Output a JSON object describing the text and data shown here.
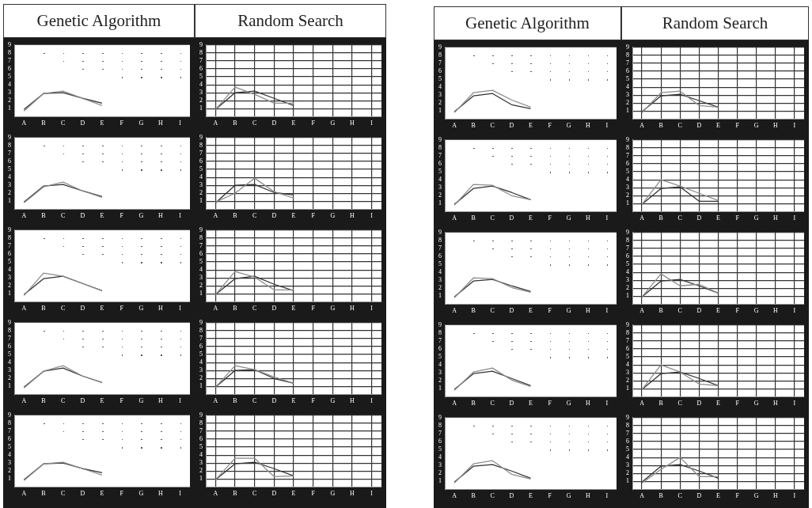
{
  "chart_data": [
    {
      "type": "line",
      "title": "Genetic Algorithm",
      "categories": [
        "A",
        "B",
        "C",
        "D",
        "E",
        "F",
        "G",
        "H",
        "I"
      ],
      "ylim": [
        0,
        9
      ],
      "yticks": [
        1,
        2,
        3,
        4,
        5,
        6,
        7,
        8,
        9
      ],
      "grid": false,
      "legend": false,
      "series": [
        {
          "color": "#8c8c8c",
          "values": [
            0.7,
            2.9,
            3.2,
            2.3,
            1.4,
            null,
            null,
            null,
            null
          ]
        },
        {
          "color": "#333333",
          "values": [
            0.9,
            2.9,
            3.0,
            2.3,
            1.7,
            null,
            null,
            null,
            null
          ]
        }
      ]
    },
    {
      "type": "line",
      "title": "Random Search",
      "categories": [
        "A",
        "B",
        "C",
        "D",
        "E",
        "F",
        "G",
        "H",
        "I"
      ],
      "ylim": [
        0,
        9
      ],
      "yticks": [
        1,
        2,
        3,
        4,
        5,
        6,
        7,
        8,
        9
      ],
      "grid": true,
      "legend": false,
      "series": [
        {
          "color": "#8c8c8c",
          "values": [
            0.9,
            3.7,
            2.8,
            1.7,
            1.7,
            null,
            null,
            null,
            null
          ]
        },
        {
          "color": "#333333",
          "values": [
            0.9,
            3.0,
            3.2,
            2.3,
            1.4,
            null,
            null,
            null,
            null
          ]
        }
      ]
    },
    {
      "type": "line",
      "categories": [
        "A",
        "B",
        "C",
        "D",
        "E",
        "F",
        "G",
        "H",
        "I"
      ],
      "ylim": [
        0,
        9
      ],
      "yticks": [
        1,
        2,
        3,
        4,
        5,
        6,
        7,
        8,
        9
      ],
      "grid": false,
      "legend": false,
      "series": [
        {
          "color": "#8c8c8c",
          "values": [
            0.8,
            2.8,
            3.4,
            2.3,
            1.5,
            null,
            null,
            null,
            null
          ]
        },
        {
          "color": "#333333",
          "values": [
            0.9,
            2.9,
            3.1,
            2.3,
            1.6,
            null,
            null,
            null,
            null
          ]
        }
      ]
    },
    {
      "type": "line",
      "categories": [
        "A",
        "B",
        "C",
        "D",
        "E",
        "F",
        "G",
        "H",
        "I"
      ],
      "ylim": [
        0,
        9
      ],
      "yticks": [
        1,
        2,
        3,
        4,
        5,
        6,
        7,
        8,
        9
      ],
      "grid": true,
      "legend": false,
      "series": [
        {
          "color": "#8c8c8c",
          "values": [
            0.9,
            2.0,
            3.9,
            2.2,
            1.4,
            null,
            null,
            null,
            null
          ]
        },
        {
          "color": "#333333",
          "values": [
            0.8,
            3.0,
            3.1,
            2.1,
            1.8,
            null,
            null,
            null,
            null
          ]
        }
      ]
    },
    {
      "type": "line",
      "categories": [
        "A",
        "B",
        "C",
        "D",
        "E",
        "F",
        "G",
        "H",
        "I"
      ],
      "ylim": [
        0,
        9
      ],
      "yticks": [
        1,
        2,
        3,
        4,
        5,
        6,
        7,
        8,
        9
      ],
      "grid": false,
      "legend": false,
      "series": [
        {
          "color": "#8c8c8c",
          "values": [
            0.8,
            3.6,
            3.2,
            2.3,
            1.4,
            null,
            null,
            null,
            null
          ]
        },
        {
          "color": "#333333",
          "values": [
            0.9,
            2.9,
            3.2,
            2.3,
            1.4,
            null,
            null,
            null,
            null
          ]
        }
      ]
    },
    {
      "type": "line",
      "categories": [
        "A",
        "B",
        "C",
        "D",
        "E",
        "F",
        "G",
        "H",
        "I"
      ],
      "ylim": [
        0,
        9
      ],
      "yticks": [
        1,
        2,
        3,
        4,
        5,
        6,
        7,
        8,
        9
      ],
      "grid": true,
      "legend": false,
      "series": [
        {
          "color": "#8c8c8c",
          "values": [
            0.9,
            3.8,
            3.1,
            1.5,
            1.5,
            null,
            null,
            null,
            null
          ]
        },
        {
          "color": "#333333",
          "values": [
            0.9,
            2.9,
            3.2,
            2.2,
            1.4,
            null,
            null,
            null,
            null
          ]
        }
      ]
    },
    {
      "type": "line",
      "categories": [
        "A",
        "B",
        "C",
        "D",
        "E",
        "F",
        "G",
        "H",
        "I"
      ],
      "ylim": [
        0,
        9
      ],
      "yticks": [
        1,
        2,
        3,
        4,
        5,
        6,
        7,
        8,
        9
      ],
      "grid": false,
      "legend": false,
      "series": [
        {
          "color": "#8c8c8c",
          "values": [
            0.8,
            2.9,
            3.6,
            2.3,
            1.5,
            null,
            null,
            null,
            null
          ]
        },
        {
          "color": "#333333",
          "values": [
            0.9,
            2.9,
            3.3,
            2.3,
            1.5,
            null,
            null,
            null,
            null
          ]
        }
      ]
    },
    {
      "type": "line",
      "categories": [
        "A",
        "B",
        "C",
        "D",
        "E",
        "F",
        "G",
        "H",
        "I"
      ],
      "ylim": [
        0,
        9
      ],
      "yticks": [
        1,
        2,
        3,
        4,
        5,
        6,
        7,
        8,
        9
      ],
      "grid": true,
      "legend": false,
      "series": [
        {
          "color": "#8c8c8c",
          "values": [
            0.9,
            3.6,
            3.1,
            2.2,
            1.4,
            null,
            null,
            null,
            null
          ]
        },
        {
          "color": "#333333",
          "values": [
            0.9,
            3.0,
            3.1,
            2.0,
            1.4,
            null,
            null,
            null,
            null
          ]
        }
      ]
    },
    {
      "type": "line",
      "categories": [
        "A",
        "B",
        "C",
        "D",
        "E",
        "F",
        "G",
        "H",
        "I"
      ],
      "ylim": [
        0,
        9
      ],
      "yticks": [
        1,
        2,
        3,
        4,
        5,
        6,
        7,
        8,
        9
      ],
      "grid": false,
      "legend": false,
      "series": [
        {
          "color": "#8c8c8c",
          "values": [
            0.8,
            2.9,
            3.1,
            2.3,
            1.5,
            null,
            null,
            null,
            null
          ]
        },
        {
          "color": "#333333",
          "values": [
            0.9,
            2.9,
            3.0,
            2.3,
            1.8,
            null,
            null,
            null,
            null
          ]
        }
      ]
    },
    {
      "type": "line",
      "categories": [
        "A",
        "B",
        "C",
        "D",
        "E",
        "F",
        "G",
        "H",
        "I"
      ],
      "ylim": [
        0,
        9
      ],
      "yticks": [
        1,
        2,
        3,
        4,
        5,
        6,
        7,
        8,
        9
      ],
      "grid": true,
      "legend": false,
      "series": [
        {
          "color": "#8c8c8c",
          "values": [
            0.9,
            3.6,
            3.6,
            1.3,
            1.4,
            null,
            null,
            null,
            null
          ]
        },
        {
          "color": "#333333",
          "values": [
            0.9,
            2.9,
            3.1,
            2.3,
            1.4,
            null,
            null,
            null,
            null
          ]
        }
      ]
    },
    {
      "type": "line",
      "title": "Genetic Algorithm",
      "categories": [
        "A",
        "B",
        "C",
        "D",
        "E",
        "F",
        "G",
        "H",
        "I"
      ],
      "ylim": [
        0,
        9
      ],
      "yticks": [
        1,
        2,
        3,
        4,
        5,
        6,
        7,
        8,
        9
      ],
      "grid": false,
      "legend": false,
      "series": [
        {
          "color": "#8c8c8c",
          "values": [
            0.8,
            3.3,
            3.6,
            2.4,
            1.5,
            null,
            null,
            null,
            null
          ]
        },
        {
          "color": "#333333",
          "values": [
            0.9,
            2.9,
            3.2,
            1.8,
            1.3,
            null,
            null,
            null,
            null
          ]
        }
      ]
    },
    {
      "type": "line",
      "title": "Random Search",
      "categories": [
        "A",
        "B",
        "C",
        "D",
        "E",
        "F",
        "G",
        "H",
        "I"
      ],
      "ylim": [
        0,
        9
      ],
      "yticks": [
        1,
        2,
        3,
        4,
        5,
        6,
        7,
        8,
        9
      ],
      "grid": true,
      "legend": false,
      "series": [
        {
          "color": "#8c8c8c",
          "values": [
            0.8,
            3.3,
            3.5,
            1.7,
            1.5,
            null,
            null,
            null,
            null
          ]
        },
        {
          "color": "#333333",
          "values": [
            0.9,
            2.9,
            3.1,
            2.3,
            1.5,
            null,
            null,
            null,
            null
          ]
        }
      ]
    },
    {
      "type": "line",
      "categories": [
        "A",
        "B",
        "C",
        "D",
        "E",
        "F",
        "G",
        "H",
        "I"
      ],
      "ylim": [
        0,
        9
      ],
      "yticks": [
        1,
        2,
        3,
        4,
        5,
        6,
        7,
        8,
        9
      ],
      "grid": false,
      "legend": false,
      "series": [
        {
          "color": "#8c8c8c",
          "values": [
            0.8,
            3.4,
            3.3,
            2.0,
            1.5,
            null,
            null,
            null,
            null
          ]
        },
        {
          "color": "#333333",
          "values": [
            0.9,
            2.9,
            3.2,
            2.4,
            1.5,
            null,
            null,
            null,
            null
          ]
        }
      ]
    },
    {
      "type": "line",
      "categories": [
        "A",
        "B",
        "C",
        "D",
        "E",
        "F",
        "G",
        "H",
        "I"
      ],
      "ylim": [
        0,
        9
      ],
      "yticks": [
        1,
        2,
        3,
        4,
        5,
        6,
        7,
        8,
        9
      ],
      "grid": true,
      "legend": false,
      "series": [
        {
          "color": "#8c8c8c",
          "values": [
            0.9,
            4.0,
            3.2,
            2.3,
            1.4,
            null,
            null,
            null,
            null
          ]
        },
        {
          "color": "#333333",
          "values": [
            0.9,
            2.9,
            3.1,
            1.3,
            1.3,
            null,
            null,
            null,
            null
          ]
        }
      ]
    },
    {
      "type": "line",
      "categories": [
        "A",
        "B",
        "C",
        "D",
        "E",
        "F",
        "G",
        "H",
        "I"
      ],
      "ylim": [
        0,
        9
      ],
      "yticks": [
        1,
        2,
        3,
        4,
        5,
        6,
        7,
        8,
        9
      ],
      "grid": false,
      "legend": false,
      "series": [
        {
          "color": "#8c8c8c",
          "values": [
            0.8,
            3.3,
            3.2,
            2.1,
            1.5,
            null,
            null,
            null,
            null
          ]
        },
        {
          "color": "#333333",
          "values": [
            0.9,
            2.9,
            3.1,
            2.3,
            1.6,
            null,
            null,
            null,
            null
          ]
        }
      ]
    },
    {
      "type": "line",
      "categories": [
        "A",
        "B",
        "C",
        "D",
        "E",
        "F",
        "G",
        "H",
        "I"
      ],
      "ylim": [
        0,
        9
      ],
      "yticks": [
        1,
        2,
        3,
        4,
        5,
        6,
        7,
        8,
        9
      ],
      "grid": true,
      "legend": false,
      "series": [
        {
          "color": "#8c8c8c",
          "values": [
            0.9,
            3.8,
            2.3,
            2.5,
            1.4,
            null,
            null,
            null,
            null
          ]
        },
        {
          "color": "#333333",
          "values": [
            0.9,
            2.9,
            3.1,
            2.3,
            1.4,
            null,
            null,
            null,
            null
          ]
        }
      ]
    },
    {
      "type": "line",
      "categories": [
        "A",
        "B",
        "C",
        "D",
        "E",
        "F",
        "G",
        "H",
        "I"
      ],
      "ylim": [
        0,
        9
      ],
      "yticks": [
        1,
        2,
        3,
        4,
        5,
        6,
        7,
        8,
        9
      ],
      "grid": false,
      "legend": false,
      "series": [
        {
          "color": "#8c8c8c",
          "values": [
            0.8,
            3.1,
            3.6,
            2.1,
            1.3,
            null,
            null,
            null,
            null
          ]
        },
        {
          "color": "#333333",
          "values": [
            0.9,
            2.9,
            3.2,
            2.3,
            1.4,
            null,
            null,
            null,
            null
          ]
        }
      ]
    },
    {
      "type": "line",
      "categories": [
        "A",
        "B",
        "C",
        "D",
        "E",
        "F",
        "G",
        "H",
        "I"
      ],
      "ylim": [
        0,
        9
      ],
      "yticks": [
        1,
        2,
        3,
        4,
        5,
        6,
        7,
        8,
        9
      ],
      "grid": true,
      "legend": false,
      "series": [
        {
          "color": "#8c8c8c",
          "values": [
            0.9,
            4.0,
            3.1,
            1.6,
            1.4,
            null,
            null,
            null,
            null
          ]
        },
        {
          "color": "#333333",
          "values": [
            0.9,
            2.9,
            3.1,
            2.3,
            1.4,
            null,
            null,
            null,
            null
          ]
        }
      ]
    },
    {
      "type": "line",
      "categories": [
        "A",
        "B",
        "C",
        "D",
        "E",
        "F",
        "G",
        "H",
        "I"
      ],
      "ylim": [
        0,
        9
      ],
      "yticks": [
        1,
        2,
        3,
        4,
        5,
        6,
        7,
        8,
        9
      ],
      "grid": false,
      "legend": false,
      "series": [
        {
          "color": "#8c8c8c",
          "values": [
            0.8,
            3.2,
            3.6,
            1.9,
            1.3,
            null,
            null,
            null,
            null
          ]
        },
        {
          "color": "#333333",
          "values": [
            0.9,
            2.9,
            3.1,
            2.3,
            1.4,
            null,
            null,
            null,
            null
          ]
        }
      ]
    },
    {
      "type": "line",
      "categories": [
        "A",
        "B",
        "C",
        "D",
        "E",
        "F",
        "G",
        "H",
        "I"
      ],
      "ylim": [
        0,
        9
      ],
      "yticks": [
        1,
        2,
        3,
        4,
        5,
        6,
        7,
        8,
        9
      ],
      "grid": true,
      "legend": false,
      "series": [
        {
          "color": "#8c8c8c",
          "values": [
            0.8,
            2.5,
            4.0,
            1.6,
            1.6,
            null,
            null,
            null,
            null
          ]
        },
        {
          "color": "#333333",
          "values": [
            0.9,
            2.9,
            3.1,
            2.3,
            1.4,
            null,
            null,
            null,
            null
          ]
        }
      ]
    }
  ]
}
